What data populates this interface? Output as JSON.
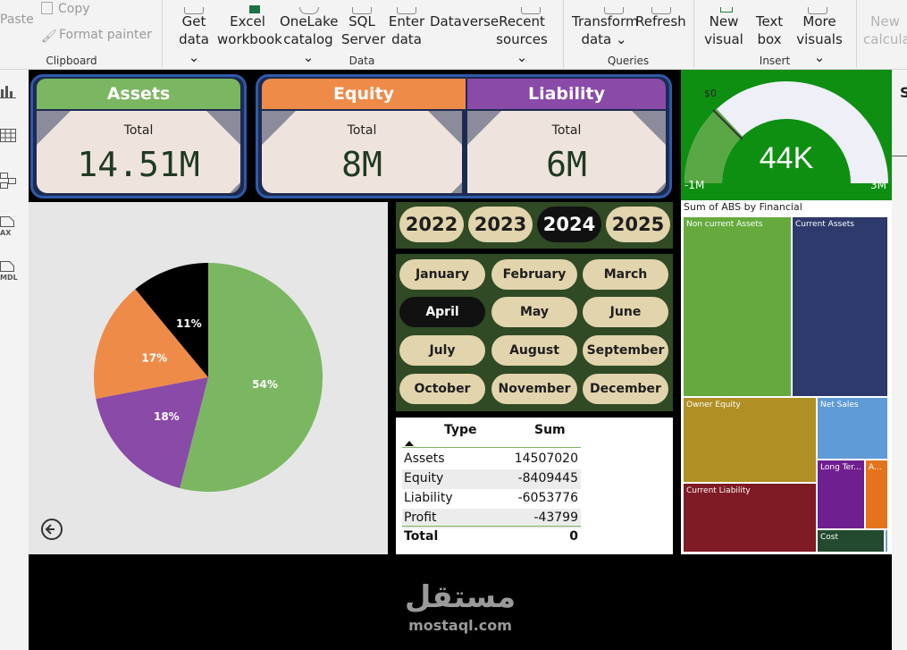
{
  "ribbon": {
    "paste": "Paste",
    "copy": "Copy",
    "format_painter": "Format painter",
    "get_data_1": "Get",
    "get_data_2": "data ⌄",
    "excel_1": "Excel",
    "excel_2": "workbook",
    "onelake_1": "OneLake",
    "onelake_2": "catalog ⌄",
    "sql_1": "SQL",
    "sql_2": "Server",
    "enter_1": "Enter",
    "enter_2": "data",
    "dataverse": "Dataverse",
    "recent_1": "Recent",
    "recent_2": "sources ⌄",
    "transform_1": "Transform",
    "transform_2": "data ⌄",
    "refresh": "Refresh",
    "new_visual_1": "New",
    "new_visual_2": "visual",
    "text_box_1": "Text",
    "text_box_2": "box",
    "more_visuals_1": "More",
    "more_visuals_2": "visuals ⌄",
    "new_calc_1": "New",
    "new_calc_2": "calcula",
    "group_clipboard": "Clipboard",
    "group_data": "Data",
    "group_queries": "Queries",
    "group_insert": "Insert"
  },
  "leftbar": {
    "icons": [
      "report-view-icon",
      "table-view-icon",
      "model-view-icon",
      "dax-query-icon",
      "tmdl-view-icon"
    ],
    "dax_label": "AX",
    "tmdl_label": "MDL"
  },
  "kpis": {
    "assets": {
      "title": "Assets",
      "sub": "Total",
      "value": "14.51M",
      "color": "#7bb661"
    },
    "equity": {
      "title": "Equity",
      "sub": "Total",
      "value": "8M",
      "color": "#ee8b49"
    },
    "liability": {
      "title": "Liability",
      "sub": "Total",
      "value": "6M",
      "color": "#8a4aa8"
    }
  },
  "pie": {
    "slices": [
      {
        "label": "54%",
        "value": 54,
        "color": "#7bb661"
      },
      {
        "label": "18%",
        "value": 18,
        "color": "#8a4aa8"
      },
      {
        "label": "17%",
        "value": 17,
        "color": "#ee8b49"
      },
      {
        "label": "11%",
        "value": 11,
        "color": "#000000"
      }
    ]
  },
  "years": [
    "2022",
    "2023",
    "2024",
    "2025"
  ],
  "selected_year": "2024",
  "months": [
    "January",
    "February",
    "March",
    "April",
    "May",
    "June",
    "July",
    "August",
    "September",
    "October",
    "November",
    "December"
  ],
  "selected_month": "April",
  "table": {
    "col_type": "Type",
    "col_sum": "Sum",
    "rows": [
      {
        "type": "Assets",
        "sum": "14507020"
      },
      {
        "type": "Equity",
        "sum": "-8409445"
      },
      {
        "type": "Liability",
        "sum": "-6053776"
      },
      {
        "type": "Profit",
        "sum": "-43799"
      }
    ],
    "total_label": "Total",
    "total_value": "0"
  },
  "gauge": {
    "value": "44K",
    "min": "-1M",
    "max": "3M",
    "target": "$0",
    "fill_fraction": 0.26
  },
  "treemap": {
    "title": "Sum of ABS by Financial",
    "tiles": {
      "non_current_assets": "Non current Assets",
      "current_assets": "Current Assets",
      "owner_equity": "Owner Equity",
      "net_sales": "Net Sales",
      "current_liability": "Current Liability",
      "long_term": "Long Ter...",
      "a_tile": "A...",
      "cost": "Cost"
    }
  },
  "watermark": {
    "arabic": "مستقل",
    "latin": "mostaql.com"
  },
  "right_edge_letter": "S",
  "colors": {
    "green": "#7bb661",
    "orange": "#ee8b49",
    "purple": "#8a4aa8",
    "navy": "#2d3a6b",
    "olive": "#b08f24",
    "skyblue": "#5f9bd6",
    "maroon": "#7e1b24",
    "darkgreen": "#234a2f",
    "gauge_bg": "#0e8f12"
  }
}
